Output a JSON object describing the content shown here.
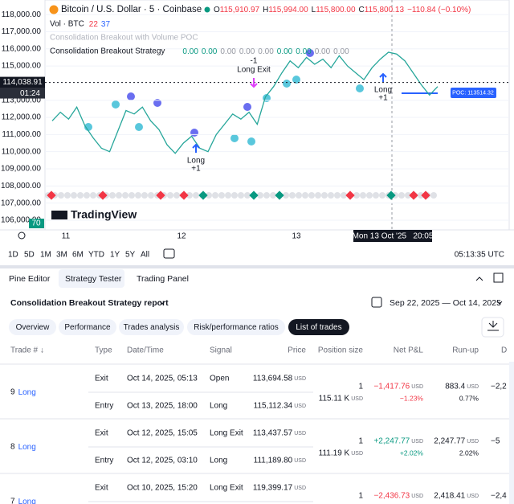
{
  "header": {
    "symbol": "Bitcoin / U.S. Dollar · 5 · Coinbase",
    "ohlc": [
      {
        "key": "O",
        "value": "115,910.97"
      },
      {
        "key": "H",
        "value": "115,994.00"
      },
      {
        "key": "L",
        "value": "115,800.00"
      },
      {
        "key": "C",
        "value": "115,800.13"
      }
    ],
    "change": "−110.84 (−0.10%)"
  },
  "indicators": {
    "volume": {
      "name": "Vol · BTC",
      "values": [
        "22",
        "37"
      ]
    },
    "poc_indicator": "Consolidation Breakout with Volume POC",
    "strategy": {
      "name": "Consolidation Breakout Strategy",
      "values": [
        "0.00",
        "0.00",
        "0.00",
        "0.00",
        "0.00",
        "0.00",
        "0.00",
        "0.00",
        "0.00"
      ],
      "colors": [
        "#089981",
        "#089981",
        "#9598a1",
        "#9598a1",
        "#9598a1",
        "#089981",
        "#089981",
        "#9598a1",
        "#9598a1"
      ]
    }
  },
  "chart": {
    "ylim": [
      105435,
      118850
    ],
    "yticks": [
      {
        "value": 106000,
        "label": "106,000.00"
      },
      {
        "value": 107000,
        "label": "107,000.00"
      },
      {
        "value": 108000,
        "label": "108,000.00"
      },
      {
        "value": 109000,
        "label": "109,000.00"
      },
      {
        "value": 110000,
        "label": "110,000.00"
      },
      {
        "value": 111000,
        "label": "111,000.00"
      },
      {
        "value": 112000,
        "label": "112,000.00"
      },
      {
        "value": 113000,
        "label": "113,000.00"
      },
      {
        "value": 115000,
        "label": "115,000.00"
      },
      {
        "value": 116000,
        "label": "116,000.00"
      },
      {
        "value": 117000,
        "label": "117,000.00"
      },
      {
        "value": 118000,
        "label": "118,000.00"
      }
    ],
    "price": {
      "color": "#26a69a",
      "values": [
        111800,
        112300,
        111900,
        112600,
        111500,
        110800,
        110200,
        110000,
        111200,
        112400,
        112200,
        112600,
        111800,
        111300,
        110400,
        109900,
        110500,
        110900,
        110200,
        110000,
        111000,
        111600,
        112200,
        111900,
        112300,
        111600,
        113200,
        113800,
        114600,
        115300,
        114900,
        115500,
        115100,
        115400,
        114900,
        115600,
        115000,
        114600,
        114200,
        114900,
        115400,
        115800,
        115700,
        115300,
        114600,
        113900,
        113300,
        113800
      ]
    },
    "last_price": {
      "value": 114038.91,
      "label": "114,038.91"
    },
    "countdown": "01:24",
    "poc_label": "POC: 113514.32",
    "volume_badge": "70",
    "x_labels": [
      "11",
      "12",
      "13"
    ],
    "crosshair_label": "Mon 13 Oct '25   20:05",
    "annotations": {
      "exit_qty": "-1",
      "exit": "Long Exit",
      "long1": "Long",
      "long1_qty": "+1",
      "long2": "Long",
      "long2_qty": "+1"
    },
    "brand": "TradingView"
  },
  "toolbar": {
    "ranges": [
      "1D",
      "5D",
      "1M",
      "3M",
      "6M",
      "YTD",
      "1Y",
      "5Y",
      "All"
    ],
    "clock": "05:13:35 UTC"
  },
  "panel": {
    "tabs": [
      "Pine Editor",
      "Strategy Tester",
      "Trading Panel"
    ],
    "report_title": "Consolidation Breakout Strategy report",
    "date_range": "Sep 22, 2025 — Oct 14, 2025",
    "subtabs": [
      "Overview",
      "Performance",
      "Trades analysis",
      "Risk/performance ratios",
      "List of trades"
    ]
  },
  "table": {
    "headers": [
      "Trade # ↓",
      "Type",
      "Date/Time",
      "Signal",
      "Price",
      "Position size",
      "Net P&L",
      "Run-up",
      "D"
    ],
    "currency": "USD",
    "trades": [
      {
        "number": "9",
        "direction": "Long",
        "exit": {
          "type": "Exit",
          "datetime": "Oct 14, 2025, 05:13",
          "signal": "Open",
          "price": "113,694.58"
        },
        "entry": {
          "type": "Entry",
          "datetime": "Oct 13, 2025, 18:00",
          "signal": "Long",
          "price": "115,112.34"
        },
        "qty": "1",
        "size_value": "115.11 K",
        "net": "−1,417.76",
        "net_pct": "−1.23%",
        "runup": "883.4",
        "runup_pct": "0.77%",
        "drawdown": "−2,2"
      },
      {
        "number": "8",
        "direction": "Long",
        "exit": {
          "type": "Exit",
          "datetime": "Oct 12, 2025, 15:05",
          "signal": "Long Exit",
          "price": "113,437.57"
        },
        "entry": {
          "type": "Entry",
          "datetime": "Oct 12, 2025, 03:10",
          "signal": "Long",
          "price": "111,189.80"
        },
        "qty": "1",
        "size_value": "111.19 K",
        "net": "+2,247.77",
        "net_pct": "+2.02%",
        "runup": "2,247.77",
        "runup_pct": "2.02%",
        "drawdown": "−5"
      },
      {
        "number": "7",
        "direction": "Long",
        "exit": {
          "type": "Exit",
          "datetime": "Oct 10, 2025, 15:20",
          "signal": "Long Exit",
          "price": "119,399.17"
        },
        "qty": "1",
        "net": "−2,436.73",
        "runup": "2,418.41",
        "drawdown": "−2,4"
      }
    ]
  }
}
